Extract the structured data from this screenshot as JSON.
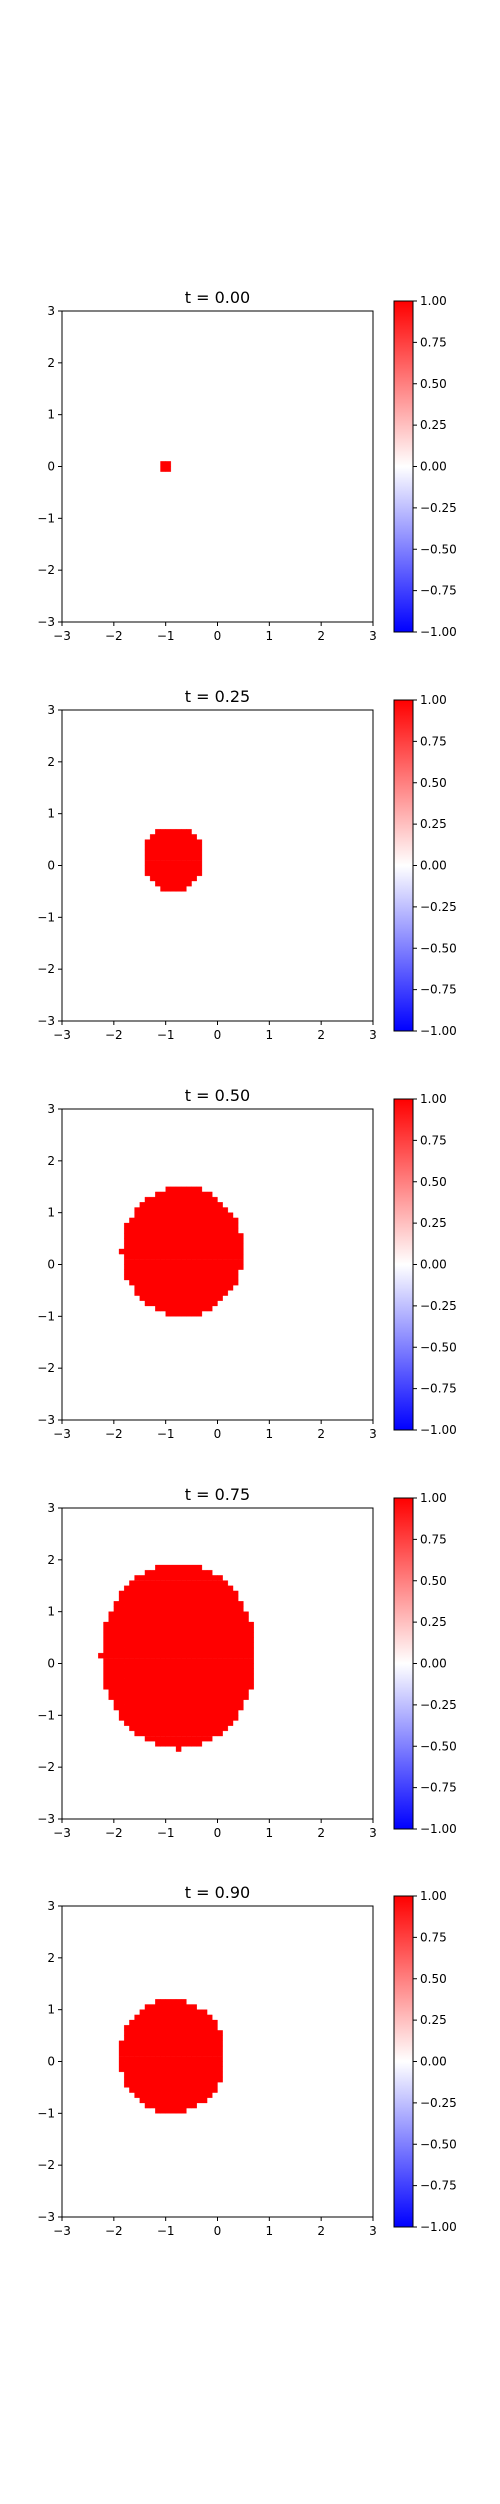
{
  "colorbar": {
    "colormap": "bwr",
    "low_color": "#0000ff",
    "mid_color": "#ffffff",
    "high_color": "#ff0000",
    "range": [
      -1,
      1
    ],
    "ticks": [
      "1.00",
      "0.75",
      "0.50",
      "0.25",
      "0.00",
      "−0.25",
      "−0.50",
      "−0.75",
      "−1.00"
    ]
  },
  "chart_data": [
    {
      "type": "heatmap",
      "title": "t = 0.00",
      "xlim": [
        -3,
        3
      ],
      "ylim": [
        -3,
        3
      ],
      "xticks": [
        "−3",
        "−2",
        "−1",
        "0",
        "1",
        "2",
        "3"
      ],
      "yticks": [
        "3",
        "2",
        "1",
        "0",
        "−1",
        "−2",
        "−3"
      ],
      "blob": {
        "value": 1.0,
        "x_range": [
          -1.15,
          -0.85
        ],
        "y_range": [
          -0.12,
          0.12
        ]
      }
    },
    {
      "type": "heatmap",
      "title": "t = 0.25",
      "xlim": [
        -3,
        3
      ],
      "ylim": [
        -3,
        3
      ],
      "xticks": [
        "−3",
        "−2",
        "−1",
        "0",
        "1",
        "2",
        "3"
      ],
      "yticks": [
        "3",
        "2",
        "1",
        "0",
        "−1",
        "−2",
        "−3"
      ],
      "blob": {
        "value": 1.0,
        "x_range": [
          -1.45,
          -0.25
        ],
        "y_range": [
          -0.5,
          0.75
        ]
      }
    },
    {
      "type": "heatmap",
      "title": "t = 0.50",
      "xlim": [
        -3,
        3
      ],
      "ylim": [
        -3,
        3
      ],
      "xticks": [
        "−3",
        "−2",
        "−1",
        "0",
        "1",
        "2",
        "3"
      ],
      "yticks": [
        "3",
        "2",
        "1",
        "0",
        "−1",
        "−2",
        "−3"
      ],
      "blob": {
        "value": 1.0,
        "x_range": [
          -1.85,
          0.5
        ],
        "y_range": [
          -1.0,
          1.5
        ]
      }
    },
    {
      "type": "heatmap",
      "title": "t = 0.75",
      "xlim": [
        -3,
        3
      ],
      "ylim": [
        -3,
        3
      ],
      "xticks": [
        "−3",
        "−2",
        "−1",
        "0",
        "1",
        "2",
        "3"
      ],
      "yticks": [
        "3",
        "2",
        "1",
        "0",
        "−1",
        "−2",
        "−3"
      ],
      "blob": {
        "value": 1.0,
        "x_range": [
          -2.25,
          0.75
        ],
        "y_range": [
          -1.65,
          1.95
        ]
      }
    },
    {
      "type": "heatmap",
      "title": "t = 0.90",
      "xlim": [
        -3,
        3
      ],
      "ylim": [
        -3,
        3
      ],
      "xticks": [
        "−3",
        "−2",
        "−1",
        "0",
        "1",
        "2",
        "3"
      ],
      "yticks": [
        "3",
        "2",
        "1",
        "0",
        "−1",
        "−2",
        "−3"
      ],
      "blob": {
        "value": 1.0,
        "x_range": [
          -1.9,
          0.15
        ],
        "y_range": [
          -1.0,
          1.2
        ]
      }
    }
  ]
}
